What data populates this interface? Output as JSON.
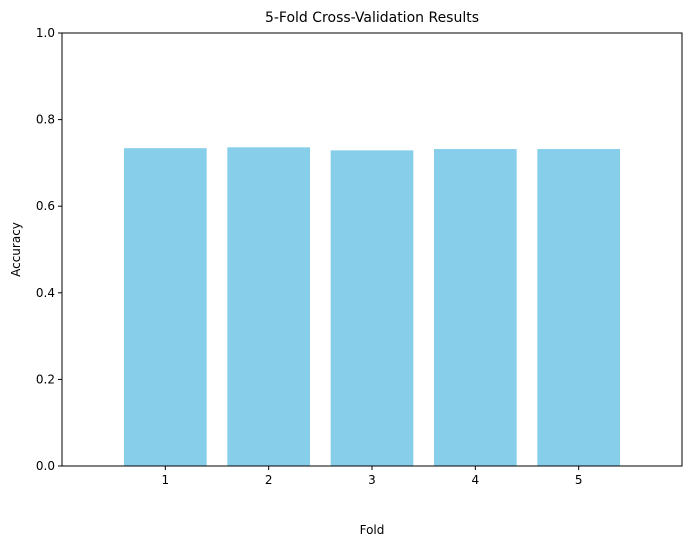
{
  "chart_data": {
    "type": "bar",
    "title": "5-Fold Cross-Validation Results",
    "xlabel": "Fold",
    "ylabel": "Accuracy",
    "categories": [
      "1",
      "2",
      "3",
      "4",
      "5"
    ],
    "values": [
      0.734,
      0.736,
      0.729,
      0.732,
      0.732
    ],
    "ylim": [
      0,
      1
    ],
    "yticks": [
      "0.0",
      "0.2",
      "0.4",
      "0.6",
      "0.8",
      "1.0"
    ],
    "bar_color": "#87ceeb",
    "grid": false,
    "legend": "none"
  }
}
